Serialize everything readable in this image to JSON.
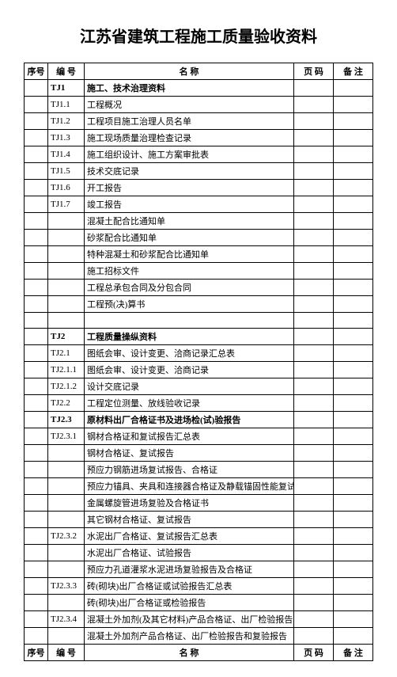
{
  "title": "江苏省建筑工程施工质量验收资料",
  "columns": {
    "xuhao": "序号",
    "bianhao": "编  号",
    "mingcheng": "名           称",
    "yema": "页 码",
    "beizhu": "备 注"
  },
  "rows": [
    {
      "code": "TJ1",
      "name": "施工、技术治理资料",
      "bold": true
    },
    {
      "code": "TJ1.1",
      "name": "工程概况"
    },
    {
      "code": "TJ1.2",
      "name": "工程项目施工治理人员名单"
    },
    {
      "code": "TJ1.3",
      "name": "施工现场质量治理检查记录"
    },
    {
      "code": "TJ1.4",
      "name": "施工组织设计、施工方案审批表"
    },
    {
      "code": "TJ1.5",
      "name": "技术交底记录"
    },
    {
      "code": "TJ1.6",
      "name": "开工报告"
    },
    {
      "code": "TJ1.7",
      "name": "竣工报告"
    },
    {
      "code": "",
      "name": "混凝土配合比通知单"
    },
    {
      "code": "",
      "name": "砂浆配合比通知单"
    },
    {
      "code": "",
      "name": "特种混凝土和砂浆配合比通知单"
    },
    {
      "code": "",
      "name": "施工招标文件"
    },
    {
      "code": "",
      "name": "工程总承包合同及分包合同"
    },
    {
      "code": "",
      "name": "工程预(决)算书"
    },
    {
      "code": "",
      "name": ""
    },
    {
      "code": "TJ2",
      "name": "工程质量操纵资料",
      "bold": true
    },
    {
      "code": "TJ2.1",
      "name": "图纸会审、设计变更、洽商记录汇总表"
    },
    {
      "code": "TJ2.1.1",
      "name": "图纸会审、设计变更、洽商记录"
    },
    {
      "code": "TJ2.1.2",
      "name": "设计交底记录"
    },
    {
      "code": "TJ2.2",
      "name": "工程定位测量、放线验收记录"
    },
    {
      "code": "TJ2.3",
      "name": "原材料出厂合格证书及进场检(试)验报告",
      "bold": true
    },
    {
      "code": "TJ2.3.1",
      "name": "钢材合格证和复试报告汇总表"
    },
    {
      "code": "",
      "name": "钢材合格证、复试报告"
    },
    {
      "code": "",
      "name": "预应力钢筋进场复试报告、合格证"
    },
    {
      "code": "",
      "name": "预应力锚具、夹具和连接器合格证及静载锚固性能复试报告"
    },
    {
      "code": "",
      "name": "金属螺旋管进场复验及合格证书"
    },
    {
      "code": "",
      "name": "其它钢材合格证、复试报告"
    },
    {
      "code": "TJ2.3.2",
      "name": "水泥出厂合格证、复试报告汇总表"
    },
    {
      "code": "",
      "name": "水泥出厂合格证、试验报告"
    },
    {
      "code": "",
      "name": "预应力孔道灌浆水泥进场复验报告及合格证"
    },
    {
      "code": "TJ2.3.3",
      "name": "砖(砌块)出厂合格证或试验报告汇总表"
    },
    {
      "code": "",
      "name": "砖(砌块)出厂合格证或检验报告"
    },
    {
      "code": "TJ2.3.4",
      "name": "混凝土外加剂(及其它材料)产品合格证、出厂检验报告和复验报告汇总表"
    },
    {
      "code": "",
      "name": "混凝土外加剂产品合格证、出厂检验报告和复验报告"
    }
  ]
}
